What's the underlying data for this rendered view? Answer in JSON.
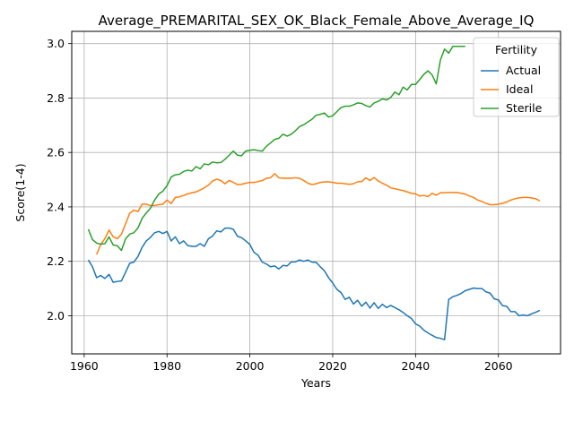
{
  "chart_data": {
    "type": "line",
    "title": "Average_PREMARITAL_SEX_OK_Black_Female_Above_Average_IQ",
    "xlabel": "Years",
    "ylabel": "Score(1-4)",
    "xlim": [
      1957,
      2075
    ],
    "ylim": [
      1.86,
      3.045
    ],
    "xticks": [
      1960,
      1980,
      2000,
      2020,
      2040,
      2060
    ],
    "yticks": [
      2.0,
      2.2,
      2.4,
      2.6,
      2.8,
      3.0
    ],
    "xtick_labels": [
      "1960",
      "1980",
      "2000",
      "2020",
      "2040",
      "2060"
    ],
    "ytick_labels": [
      "2.0",
      "2.2",
      "2.4",
      "2.6",
      "2.8",
      "3.0"
    ],
    "grid": true,
    "legend": {
      "title": "Fertility",
      "placement": "top-right"
    },
    "series": [
      {
        "name": "Actual",
        "color": "#1f77b4",
        "x": [
          1961,
          1962,
          1963,
          1964,
          1965,
          1966,
          1967,
          1968,
          1969,
          1970,
          1971,
          1972,
          1973,
          1974,
          1975,
          1976,
          1977,
          1978,
          1979,
          1980,
          1981,
          1982,
          1983,
          1984,
          1985,
          1986,
          1987,
          1988,
          1989,
          1990,
          1991,
          1992,
          1993,
          1994,
          1995,
          1996,
          1997,
          1998,
          1999,
          2000,
          2001,
          2002,
          2003,
          2004,
          2005,
          2006,
          2007,
          2008,
          2009,
          2010,
          2011,
          2012,
          2013,
          2014,
          2015,
          2016,
          2017,
          2018,
          2019,
          2020,
          2021,
          2022,
          2023,
          2024,
          2025,
          2026,
          2027,
          2028,
          2029,
          2030,
          2031,
          2032,
          2033,
          2034,
          2035,
          2036,
          2037,
          2038,
          2039,
          2040,
          2041,
          2042,
          2043,
          2044,
          2045,
          2046,
          2047,
          2048,
          2049,
          2050,
          2051,
          2052,
          2053,
          2054,
          2055,
          2056,
          2057,
          2058,
          2059,
          2060,
          2061,
          2062,
          2063,
          2064,
          2065,
          2066,
          2067,
          2068,
          2069,
          2070
        ],
        "values": [
          2.205,
          2.18,
          2.14,
          2.148,
          2.137,
          2.152,
          2.123,
          2.126,
          2.128,
          2.16,
          2.193,
          2.197,
          2.218,
          2.252,
          2.275,
          2.288,
          2.305,
          2.31,
          2.302,
          2.31,
          2.275,
          2.29,
          2.265,
          2.275,
          2.258,
          2.255,
          2.255,
          2.265,
          2.255,
          2.283,
          2.293,
          2.312,
          2.308,
          2.322,
          2.322,
          2.318,
          2.292,
          2.287,
          2.275,
          2.262,
          2.233,
          2.222,
          2.197,
          2.19,
          2.18,
          2.183,
          2.172,
          2.185,
          2.183,
          2.198,
          2.198,
          2.205,
          2.2,
          2.205,
          2.197,
          2.196,
          2.18,
          2.165,
          2.14,
          2.12,
          2.097,
          2.085,
          2.06,
          2.068,
          2.043,
          2.057,
          2.035,
          2.05,
          2.028,
          2.048,
          2.027,
          2.042,
          2.03,
          2.038,
          2.03,
          2.022,
          2.012,
          2.0,
          1.99,
          1.97,
          1.962,
          1.947,
          1.937,
          1.928,
          1.92,
          1.917,
          1.912,
          2.06,
          2.07,
          2.075,
          2.082,
          2.092,
          2.097,
          2.102,
          2.1,
          2.1,
          2.088,
          2.083,
          2.062,
          2.058,
          2.037,
          2.035,
          2.015,
          2.015,
          2.0,
          2.003,
          2.0,
          2.007,
          2.013,
          2.02
        ]
      },
      {
        "name": "Ideal",
        "color": "#ff7f0e",
        "x": [
          1963,
          1964,
          1965,
          1966,
          1967,
          1968,
          1969,
          1970,
          1971,
          1972,
          1973,
          1974,
          1975,
          1976,
          1977,
          1978,
          1979,
          1980,
          1981,
          1982,
          1983,
          1984,
          1985,
          1986,
          1987,
          1988,
          1989,
          1990,
          1991,
          1992,
          1993,
          1994,
          1995,
          1996,
          1997,
          1998,
          1999,
          2000,
          2001,
          2002,
          2003,
          2004,
          2005,
          2006,
          2007,
          2008,
          2009,
          2010,
          2011,
          2012,
          2013,
          2014,
          2015,
          2016,
          2017,
          2018,
          2019,
          2020,
          2021,
          2022,
          2023,
          2024,
          2025,
          2026,
          2027,
          2028,
          2029,
          2030,
          2031,
          2032,
          2033,
          2034,
          2035,
          2036,
          2037,
          2038,
          2039,
          2040,
          2041,
          2042,
          2043,
          2044,
          2045,
          2046,
          2047,
          2048,
          2049,
          2050,
          2051,
          2052,
          2053,
          2054,
          2055,
          2056,
          2057,
          2058,
          2059,
          2060,
          2061,
          2062,
          2063,
          2064,
          2065,
          2066,
          2067,
          2068,
          2069,
          2070
        ],
        "values": [
          2.225,
          2.262,
          2.283,
          2.315,
          2.29,
          2.283,
          2.3,
          2.338,
          2.377,
          2.388,
          2.383,
          2.41,
          2.41,
          2.405,
          2.405,
          2.408,
          2.41,
          2.425,
          2.412,
          2.435,
          2.437,
          2.442,
          2.448,
          2.452,
          2.455,
          2.462,
          2.47,
          2.48,
          2.495,
          2.502,
          2.497,
          2.485,
          2.497,
          2.49,
          2.482,
          2.483,
          2.487,
          2.49,
          2.49,
          2.493,
          2.497,
          2.505,
          2.507,
          2.522,
          2.507,
          2.505,
          2.505,
          2.505,
          2.507,
          2.505,
          2.497,
          2.487,
          2.482,
          2.485,
          2.49,
          2.492,
          2.492,
          2.49,
          2.487,
          2.487,
          2.485,
          2.483,
          2.485,
          2.492,
          2.493,
          2.507,
          2.497,
          2.508,
          2.495,
          2.487,
          2.48,
          2.47,
          2.467,
          2.463,
          2.46,
          2.455,
          2.45,
          2.448,
          2.44,
          2.442,
          2.438,
          2.45,
          2.443,
          2.452,
          2.452,
          2.453,
          2.453,
          2.453,
          2.45,
          2.447,
          2.44,
          2.435,
          2.425,
          2.42,
          2.413,
          2.408,
          2.408,
          2.41,
          2.413,
          2.418,
          2.425,
          2.43,
          2.433,
          2.435,
          2.435,
          2.433,
          2.43,
          2.422
        ],
        "x_start_note": ""
      },
      {
        "name": "Sterile",
        "color": "#2ca02c",
        "x": [
          1961,
          1962,
          1963,
          1964,
          1965,
          1966,
          1967,
          1968,
          1969,
          1970,
          1971,
          1972,
          1973,
          1974,
          1975,
          1976,
          1977,
          1978,
          1979,
          1980,
          1981,
          1982,
          1983,
          1984,
          1985,
          1986,
          1987,
          1988,
          1989,
          1990,
          1991,
          1992,
          1993,
          1994,
          1995,
          1996,
          1997,
          1998,
          1999,
          2000,
          2001,
          2002,
          2003,
          2004,
          2005,
          2006,
          2007,
          2008,
          2009,
          2010,
          2011,
          2012,
          2013,
          2014,
          2015,
          2016,
          2017,
          2018,
          2019,
          2020,
          2021,
          2022,
          2023,
          2024,
          2025,
          2026,
          2027,
          2028,
          2029,
          2030,
          2031,
          2032,
          2033,
          2034,
          2035,
          2036,
          2037,
          2038,
          2039,
          2040,
          2041,
          2042,
          2043,
          2044,
          2045,
          2046,
          2047,
          2048,
          2049,
          2050,
          2051,
          2052
        ],
        "values": [
          2.318,
          2.28,
          2.267,
          2.263,
          2.265,
          2.29,
          2.26,
          2.257,
          2.24,
          2.283,
          2.3,
          2.305,
          2.323,
          2.358,
          2.378,
          2.395,
          2.425,
          2.447,
          2.458,
          2.478,
          2.51,
          2.518,
          2.52,
          2.53,
          2.535,
          2.532,
          2.548,
          2.54,
          2.558,
          2.555,
          2.565,
          2.562,
          2.563,
          2.575,
          2.59,
          2.605,
          2.59,
          2.588,
          2.605,
          2.608,
          2.61,
          2.607,
          2.605,
          2.623,
          2.635,
          2.648,
          2.652,
          2.667,
          2.66,
          2.667,
          2.68,
          2.695,
          2.702,
          2.712,
          2.722,
          2.737,
          2.74,
          2.745,
          2.73,
          2.735,
          2.75,
          2.765,
          2.77,
          2.77,
          2.775,
          2.782,
          2.78,
          2.772,
          2.767,
          2.782,
          2.788,
          2.797,
          2.793,
          2.802,
          2.822,
          2.812,
          2.84,
          2.83,
          2.85,
          2.85,
          2.868,
          2.887,
          2.9,
          2.885,
          2.852,
          2.94,
          2.98,
          2.965,
          2.99,
          2.99,
          2.99,
          2.99
        ]
      }
    ]
  }
}
